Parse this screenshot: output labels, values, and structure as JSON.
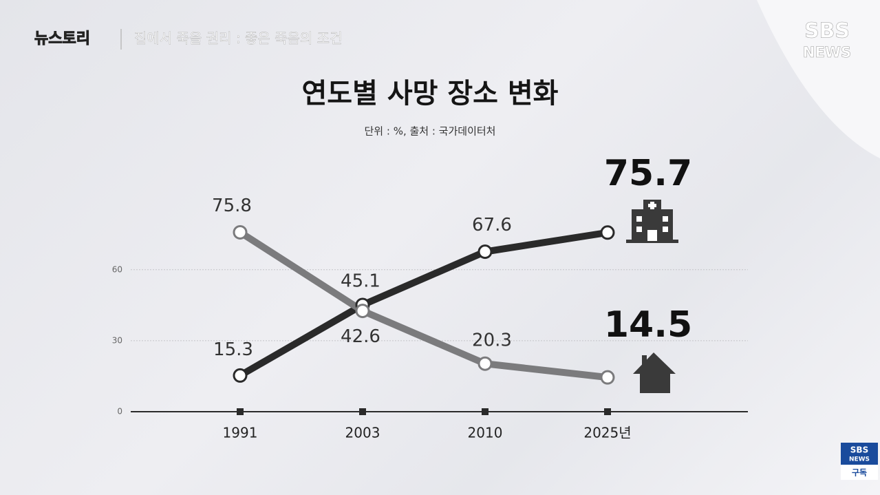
{
  "header": {
    "show_logo": "뉴스토리",
    "episode": "집에서 죽을 권리 : 좋은 죽음의 조건",
    "channel_logo": [
      "SBS",
      "NEWS"
    ],
    "subscribe": [
      "SBS",
      "NEWS",
      "구독"
    ]
  },
  "chart_data": {
    "type": "line",
    "title": "연도별 사망 장소 변화",
    "subtitle": "단위 : %, 출처 : 국가데이터처",
    "categories": [
      "1991",
      "2003",
      "2010",
      "2025년"
    ],
    "series": [
      {
        "color": "#2a2a2a",
        "values": [
          15.3,
          45.1,
          67.6,
          75.7
        ]
      },
      {
        "color": "#7b7b7d",
        "values": [
          75.8,
          42.6,
          20.3,
          14.5
        ]
      }
    ],
    "ylim": [
      0,
      80
    ],
    "yticks": [
      0,
      30,
      60
    ],
    "grid": true
  }
}
